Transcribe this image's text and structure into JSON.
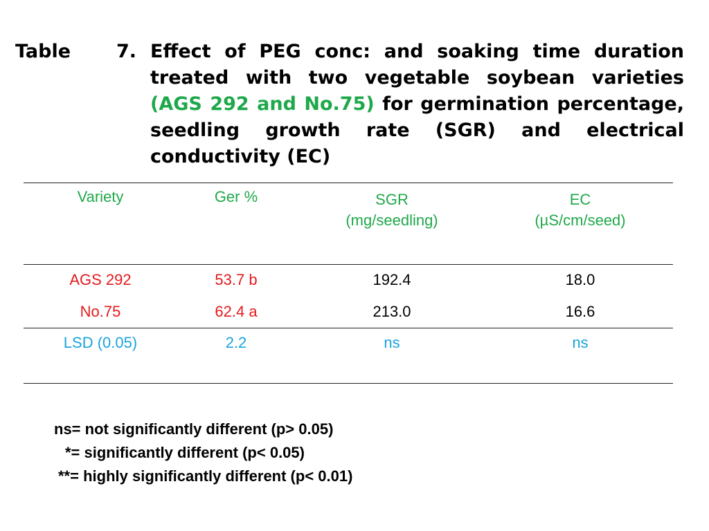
{
  "caption": {
    "label": "Table",
    "number": "7.",
    "text_before": "Effect of PEG conc: and soaking time duration treated with two vegetable soybean varieties",
    "highlight": "(AGS 292 and No.75)",
    "text_after": "for germination percentage, seedling growth rate (SGR) and electrical conductivity (EC)"
  },
  "table": {
    "headers": {
      "variety": "Variety",
      "ger": "Ger %",
      "sgr_line1": "SGR",
      "sgr_line2": "(mg/seedling)",
      "ec_line1": "EC",
      "ec_line2": "(µS/cm/seed)"
    },
    "rows": [
      {
        "variety": "AGS 292",
        "ger": "53.7 b",
        "sgr": "192.4",
        "ec": "18.0"
      },
      {
        "variety": "No.75",
        "ger": "62.4 a",
        "sgr": "213.0",
        "ec": "16.6"
      }
    ],
    "lsd": {
      "label": "LSD (0.05)",
      "ger": "2.2",
      "sgr": "ns",
      "ec": "ns"
    }
  },
  "notes": [
    "ns= not significantly different (p> 0.05)",
    "*= significantly different (p< 0.05)",
    "**= highly significantly different (p< 0.01)"
  ],
  "colors": {
    "header": "#1fa84a",
    "variety": "#e3191c",
    "lsd": "#1aa3dc"
  }
}
